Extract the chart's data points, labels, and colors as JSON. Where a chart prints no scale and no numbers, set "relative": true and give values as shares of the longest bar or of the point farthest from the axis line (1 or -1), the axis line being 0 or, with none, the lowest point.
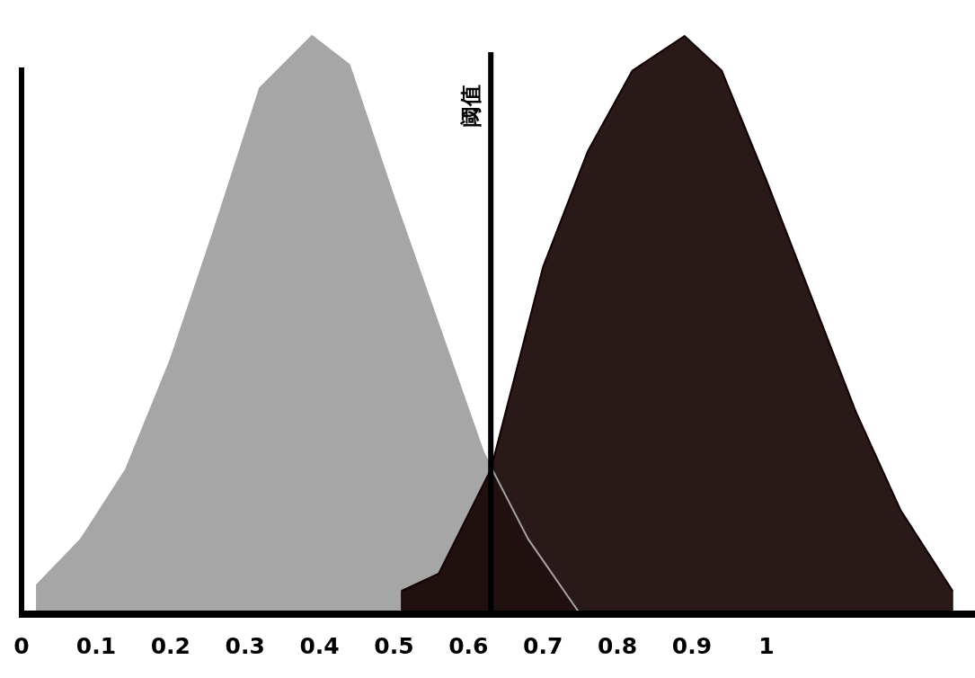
{
  "chart_data": {
    "type": "area",
    "relative": true,
    "xlim": [
      0,
      1.28
    ],
    "xticks": [
      0,
      0.1,
      0.2,
      0.3,
      0.4,
      0.5,
      0.6,
      0.7,
      0.8,
      0.9,
      1
    ],
    "series": [
      {
        "color": "#a6a6a6",
        "x": [
          0.02,
          0.08,
          0.14,
          0.2,
          0.26,
          0.32,
          0.39,
          0.44,
          0.5,
          0.56,
          0.62,
          0.68,
          0.75
        ],
        "values": [
          0.05,
          0.13,
          0.25,
          0.44,
          0.67,
          0.91,
          1,
          0.95,
          0.72,
          0.5,
          0.28,
          0.13,
          0
        ]
      },
      {
        "color": "#120000",
        "x": [
          0.51,
          0.56,
          0.63,
          0.7,
          0.76,
          0.82,
          0.89,
          0.94,
          1,
          1.06,
          1.12,
          1.18,
          1.25
        ],
        "values": [
          0.04,
          0.07,
          0.25,
          0.6,
          0.8,
          0.94,
          1,
          0.94,
          0.75,
          0.55,
          0.35,
          0.18,
          0.04
        ]
      }
    ],
    "ref_lines": [
      {
        "axis": "x",
        "value": 0.63,
        "label": "阈值",
        "color": "#000000"
      }
    ]
  }
}
